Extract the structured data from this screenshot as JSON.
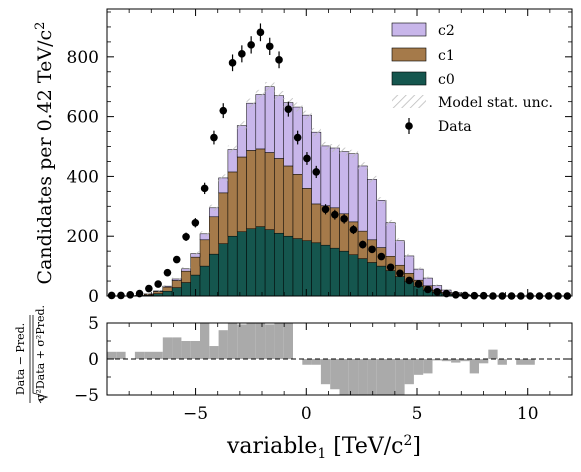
{
  "chart_data": {
    "type": "bar",
    "x_edges": [
      -9.0,
      -8.58,
      -8.16,
      -7.74,
      -7.32,
      -6.9,
      -6.48,
      -6.06,
      -5.64,
      -5.22,
      -4.8,
      -4.38,
      -3.96,
      -3.54,
      -3.12,
      -2.7,
      -2.28,
      -1.86,
      -1.44,
      -1.02,
      -0.6,
      -0.18,
      0.24,
      0.66,
      1.08,
      1.5,
      1.92,
      2.34,
      2.76,
      3.18,
      3.6,
      4.02,
      4.44,
      4.86,
      5.28,
      5.7,
      6.12,
      6.54,
      6.96,
      7.38,
      7.8,
      8.22,
      8.64,
      9.06,
      9.48,
      9.9,
      10.32,
      10.74,
      11.16,
      11.58,
      12.0
    ],
    "xlim": [
      -9,
      12
    ],
    "top": {
      "ylabel": "Candidates per 0.42 TeV/c²",
      "ylim": [
        0,
        960
      ],
      "yticks": [
        0,
        200,
        400,
        600,
        800
      ],
      "stacked": true,
      "series": [
        {
          "name": "c0",
          "color": "#15564e",
          "values": [
            0,
            0,
            0,
            1,
            3,
            8,
            16,
            28,
            45,
            70,
            100,
            140,
            175,
            200,
            215,
            225,
            232,
            222,
            210,
            200,
            192,
            185,
            178,
            170,
            160,
            150,
            138,
            125,
            112,
            100,
            85,
            65,
            48,
            33,
            20,
            12,
            7,
            4,
            2,
            1,
            1,
            0,
            0,
            0,
            0,
            0,
            0,
            0,
            0,
            0
          ]
        },
        {
          "name": "c1",
          "color": "#a57a4a",
          "values": [
            0,
            0,
            0,
            1,
            3,
            7,
            14,
            24,
            38,
            60,
            88,
            125,
            170,
            215,
            250,
            262,
            260,
            258,
            250,
            235,
            215,
            175,
            130,
            132,
            135,
            125,
            110,
            92,
            76,
            62,
            48,
            38,
            28,
            20,
            14,
            8,
            5,
            3,
            2,
            1,
            0,
            0,
            0,
            0,
            0,
            0,
            0,
            0,
            0,
            0
          ]
        },
        {
          "name": "c2",
          "color": "#c8b6ea",
          "values": [
            0,
            0,
            0,
            0,
            1,
            2,
            3,
            5,
            8,
            12,
            20,
            30,
            50,
            75,
            105,
            158,
            182,
            220,
            210,
            212,
            225,
            245,
            240,
            200,
            200,
            208,
            228,
            218,
            202,
            158,
            112,
            82,
            58,
            37,
            26,
            15,
            8,
            4,
            2,
            1,
            1,
            0,
            0,
            0,
            0,
            0,
            0,
            0,
            0,
            0
          ]
        }
      ],
      "model_unc_label": "Model stat. unc.",
      "data_label": "Data",
      "data": [
        2,
        2,
        4,
        8,
        25,
        40,
        78,
        122,
        198,
        245,
        360,
        530,
        620,
        780,
        810,
        840,
        882,
        835,
        790,
        625,
        530,
        460,
        415,
        290,
        272,
        258,
        222,
        172,
        156,
        132,
        96,
        76,
        52,
        40,
        22,
        14,
        8,
        4,
        2,
        1,
        1,
        0,
        0,
        0,
        0,
        0,
        0,
        0,
        0,
        0
      ]
    },
    "bottom": {
      "ylabel": "(Data − Pred.) / √(σ²Data + σ²Pred.)",
      "ylabel_numerator": "Data − Pred.",
      "ylabel_denominator": "σ²Data + σ²Pred.",
      "ylim": [
        -5,
        5
      ],
      "yticks": [
        -5,
        0,
        5
      ],
      "color": "#aaaaaa",
      "values": [
        1,
        1,
        0,
        1,
        1,
        1,
        3,
        3,
        2.5,
        2.5,
        5,
        1.8,
        4,
        5,
        4.8,
        5,
        5,
        4.8,
        5,
        5,
        0,
        -0.8,
        -0.8,
        -3.5,
        -4.2,
        -5,
        -5,
        -5,
        -5,
        -5,
        -5,
        -5,
        -3.5,
        -2.2,
        -2,
        -0.2,
        -0.3,
        -0.5,
        -0.3,
        -2,
        -0.6,
        1.3,
        -0.8,
        0,
        -0.8,
        -0.8,
        0,
        0,
        0,
        0
      ]
    },
    "xticks": [
      -5,
      0,
      5,
      10
    ],
    "xlabel": "variable₁ [TeV/c²]",
    "xlabel_main": "variable",
    "xlabel_sub": "1",
    "xlabel_unit": " [TeV/c",
    "xlabel_unit_sup": "2",
    "xlabel_unit_close": "]",
    "ylabel_top_main": "Candidates per 0.42 TeV/c",
    "ylabel_top_sup": "2",
    "legend_loc": "upper right",
    "grid": false
  }
}
